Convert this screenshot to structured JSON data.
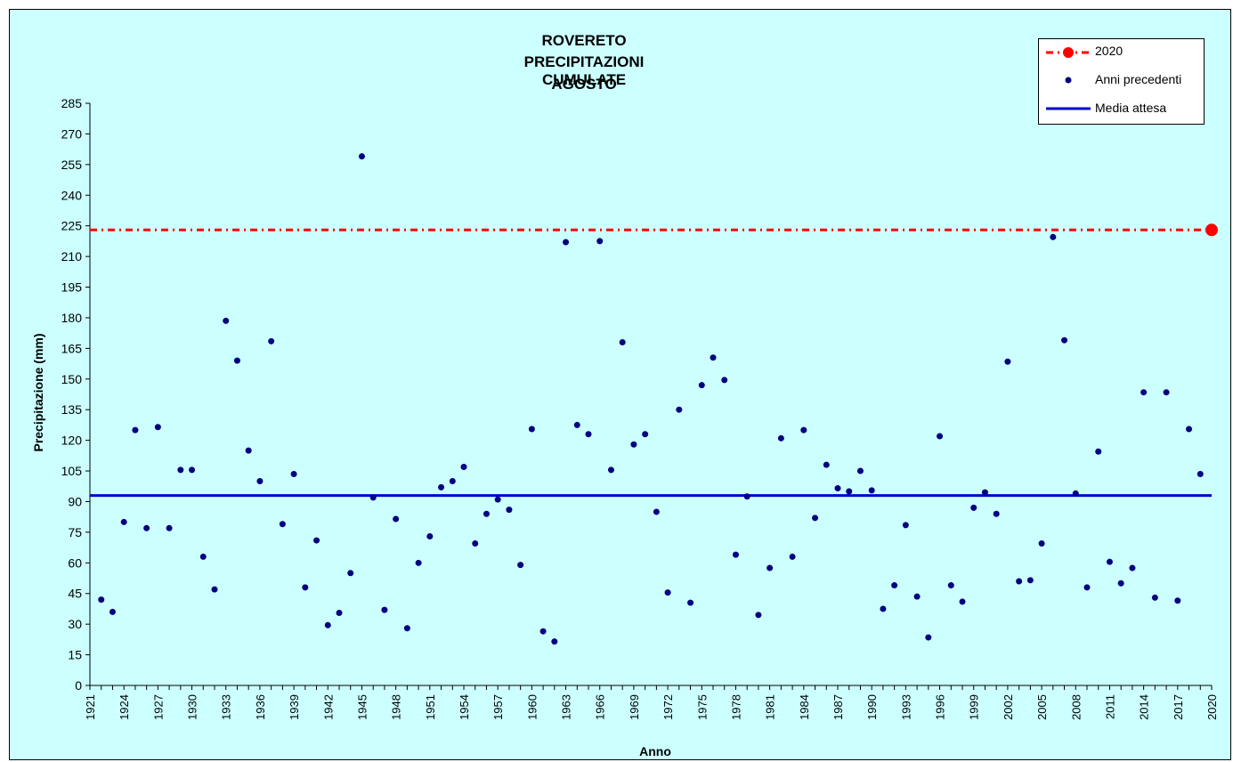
{
  "chart_data": {
    "type": "scatter",
    "title_lines": [
      "ROVERETO",
      "PRECIPITAZIONI CUMULATE",
      "AGOSTO"
    ],
    "xlabel": "Anno",
    "ylabel": "Precipitazione (mm)",
    "xlim": [
      1921,
      2020
    ],
    "ylim": [
      0,
      285
    ],
    "yticks": [
      0,
      15,
      30,
      45,
      60,
      75,
      90,
      105,
      120,
      135,
      150,
      165,
      180,
      195,
      210,
      225,
      240,
      255,
      270,
      285
    ],
    "xticks": [
      1921,
      1924,
      1927,
      1930,
      1933,
      1936,
      1939,
      1942,
      1945,
      1948,
      1951,
      1954,
      1957,
      1960,
      1963,
      1966,
      1969,
      1972,
      1975,
      1978,
      1981,
      1984,
      1987,
      1990,
      1993,
      1996,
      1999,
      2002,
      2005,
      2008,
      2011,
      2014,
      2017,
      2020
    ],
    "legend_position": "top-right",
    "series": [
      {
        "name": "2020",
        "color": "#ff0000",
        "style": "dash-dot line with large marker",
        "x": [
          2020
        ],
        "y": [
          223
        ]
      },
      {
        "name": "Anni precedenti",
        "color": "#000080",
        "style": "markers",
        "x": [
          1922,
          1923,
          1924,
          1925,
          1926,
          1927,
          1928,
          1929,
          1930,
          1931,
          1932,
          1933,
          1934,
          1935,
          1936,
          1937,
          1938,
          1939,
          1940,
          1941,
          1942,
          1943,
          1944,
          1945,
          1946,
          1947,
          1948,
          1949,
          1950,
          1951,
          1952,
          1953,
          1954,
          1955,
          1956,
          1957,
          1958,
          1959,
          1960,
          1961,
          1962,
          1963,
          1964,
          1965,
          1966,
          1967,
          1968,
          1969,
          1970,
          1971,
          1972,
          1973,
          1974,
          1975,
          1976,
          1977,
          1978,
          1979,
          1980,
          1981,
          1982,
          1983,
          1984,
          1985,
          1986,
          1987,
          1988,
          1989,
          1990,
          1991,
          1992,
          1993,
          1994,
          1995,
          1996,
          1997,
          1998,
          1999,
          2000,
          2001,
          2002,
          2003,
          2004,
          2005,
          2006,
          2007,
          2008,
          2009,
          2010,
          2011,
          2012,
          2013,
          2014,
          2015,
          2016,
          2017,
          2018,
          2019
        ],
        "y": [
          42,
          36,
          80,
          125,
          77,
          126.5,
          77,
          105.5,
          105.5,
          63,
          47,
          178.5,
          159,
          115,
          100,
          168.5,
          79,
          103.5,
          48,
          71,
          29.5,
          35.5,
          55,
          259,
          92,
          37,
          81.5,
          28,
          60,
          73,
          97,
          100,
          107,
          69.5,
          84,
          91,
          86,
          59,
          125.5,
          26.5,
          21.5,
          217,
          127.5,
          123,
          217.5,
          105.5,
          168,
          118,
          123,
          85,
          45.5,
          135,
          40.5,
          147,
          160.5,
          149.5,
          64,
          92.5,
          34.5,
          57.5,
          121,
          63,
          125,
          82,
          108,
          96.5,
          95,
          105,
          95.5,
          37.5,
          49,
          78.5,
          43.5,
          23.5,
          122,
          49,
          41,
          87,
          94.5,
          84,
          158.5,
          51,
          51.5,
          69.5,
          219.5,
          169,
          94,
          48,
          114.5,
          60.5,
          50,
          57.5,
          143.5,
          43,
          143.5,
          41.5,
          125.5,
          103.5
        ]
      },
      {
        "name": "Media attesa",
        "color": "#0000cc",
        "style": "line",
        "y": [
          93
        ]
      }
    ]
  }
}
